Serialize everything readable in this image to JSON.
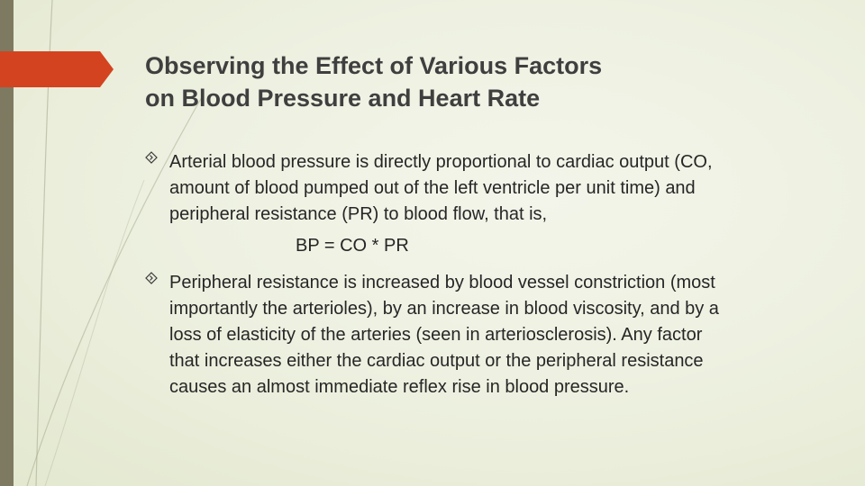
{
  "slide": {
    "title_lines": [
      "Observing the Effect of Various Factors",
      "on Blood Pressure and Heart Rate"
    ],
    "bullets": [
      {
        "icon": "diamond-bullet-icon",
        "lines": [
          "Arterial blood pressure is directly proportional to cardiac output (CO,",
          "amount of blood pumped out of the left ventricle per unit time) and",
          "peripheral resistance (PR) to blood flow, that is,"
        ]
      },
      {
        "icon": "diamond-bullet-icon",
        "lines": [
          "Peripheral resistance is increased by blood vessel constriction (most",
          "importantly the arterioles), by an increase in blood viscosity, and by a",
          "loss of elasticity of the arteries (seen in arteriosclerosis). Any factor",
          "that increases either the cardiac output or the peripheral resistance",
          "causes an almost immediate reflex rise in blood pressure."
        ]
      }
    ],
    "formula": "BP = CO * PR"
  },
  "colors": {
    "background": "#eef1e1",
    "left_bar": "#7e7a61",
    "accent_arrow": "#d4431f",
    "title_text": "#3f3f3f",
    "body_text": "#262626"
  }
}
